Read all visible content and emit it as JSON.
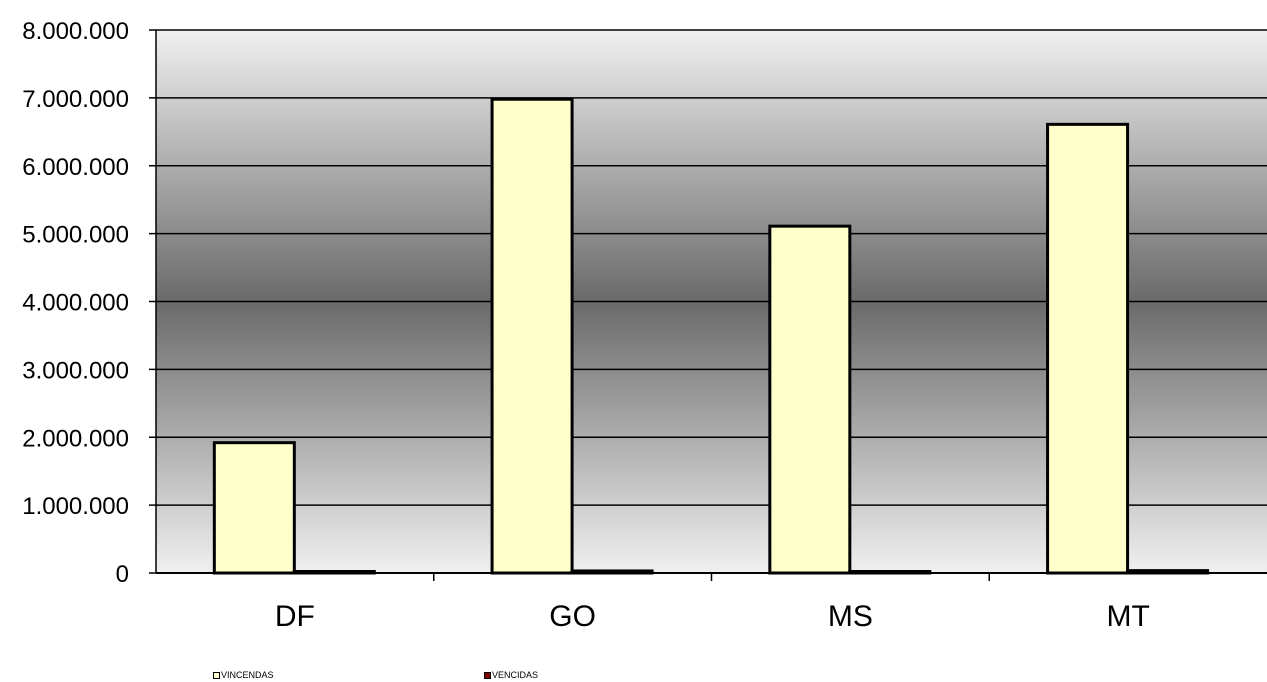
{
  "chart_data": {
    "type": "bar",
    "categories": [
      "DF",
      "GO",
      "MS",
      "MT"
    ],
    "series": [
      {
        "name": "VINCENDAS",
        "values": [
          1920000,
          6980000,
          5110000,
          6610000
        ],
        "color": "#ffffcc"
      },
      {
        "name": "VENCIDAS",
        "values": [
          15000,
          30000,
          15000,
          35000
        ],
        "color": "#800000"
      }
    ],
    "ylim": [
      0,
      8000000
    ],
    "yticks": [
      "0",
      "1.000.000",
      "2.000.000",
      "3.000.000",
      "4.000.000",
      "5.000.000",
      "6.000.000",
      "7.000.000",
      "8.000.000"
    ],
    "title": "",
    "xlabel": "",
    "ylabel": "",
    "grid": true,
    "legend_position": "bottom",
    "plot_background": "gradient-gray"
  }
}
